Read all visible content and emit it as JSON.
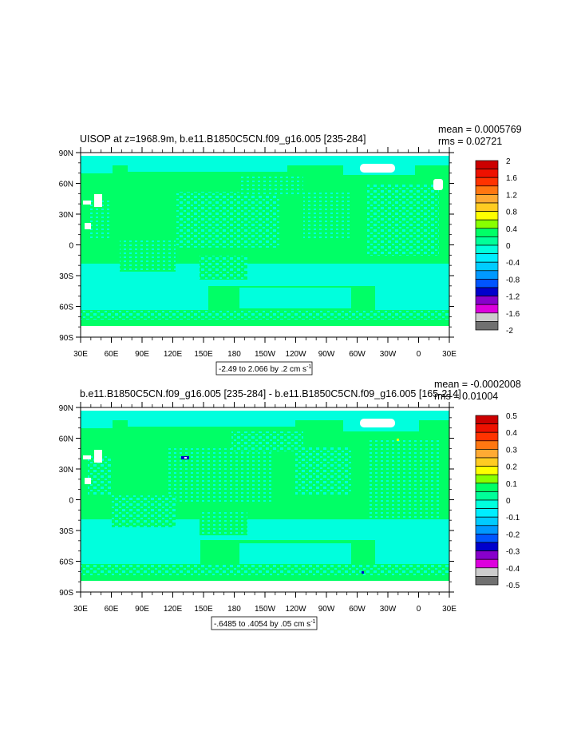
{
  "colors": {
    "ocean_zero": "#00ff66",
    "ocean_neg_small": "#00ffdd",
    "land_missing": "#ffffff"
  },
  "panels": [
    {
      "title_left": "UISOP at z=1968.9m, b.e11.B1850C5CN.f09_g16.005 [235-284]",
      "mean_label": "mean = 0.0005769",
      "rms_label": "rms = 0.02721",
      "range_main": "-2.49 to 2.066 by .2 cm s",
      "range_exp": "-1",
      "lat_labels": [
        "90N",
        "60N",
        "30N",
        "0",
        "30S",
        "60S",
        "90S"
      ],
      "lon_labels": [
        "30E",
        "60E",
        "90E",
        "120E",
        "150E",
        "180",
        "150W",
        "120W",
        "90W",
        "60W",
        "30W",
        "0",
        "30E"
      ],
      "colorbar": {
        "labels": [
          "2",
          "1.6",
          "1.2",
          "0.8",
          "0.4",
          "0",
          "-0.4",
          "-0.8",
          "-1.2",
          "-1.6",
          "-2"
        ],
        "colors": [
          "#cc0000",
          "#ee1100",
          "#ff3300",
          "#ff7711",
          "#ffaa33",
          "#ffcc22",
          "#ffff00",
          "#88ff00",
          "#00ff66",
          "#00ff99",
          "#00ffdd",
          "#00eeff",
          "#00ccff",
          "#0099ff",
          "#0055ff",
          "#0000cc",
          "#8800cc",
          "#dd00dd",
          "#cccccc",
          "#707070"
        ]
      }
    },
    {
      "title_left": "b.e11.B1850C5CN.f09_g16.005 [235-284] - b.e11.B1850C5CN.f09_g16.005 [165-214]",
      "mean_label": "mean = -0.0002008",
      "rms_label": "rms = 0.01004",
      "range_main": "-.6485 to .4054 by .05 cm s",
      "range_exp": "-1",
      "lat_labels": [
        "90N",
        "60N",
        "30N",
        "0",
        "30S",
        "60S",
        "90S"
      ],
      "lon_labels": [
        "30E",
        "60E",
        "90E",
        "120E",
        "150E",
        "180",
        "150W",
        "120W",
        "90W",
        "60W",
        "30W",
        "0",
        "30E"
      ],
      "colorbar": {
        "labels": [
          "0.5",
          "0.4",
          "0.3",
          "0.2",
          "0.1",
          "0",
          "-0.1",
          "-0.2",
          "-0.3",
          "-0.4",
          "-0.5"
        ],
        "colors": [
          "#cc0000",
          "#ee1100",
          "#ff3300",
          "#ff7711",
          "#ffaa33",
          "#ffcc22",
          "#ffff00",
          "#88ff00",
          "#00ff66",
          "#00ff99",
          "#00ffdd",
          "#00eeff",
          "#00ccff",
          "#0099ff",
          "#0055ff",
          "#0000cc",
          "#8800cc",
          "#dd00dd",
          "#cccccc",
          "#707070"
        ]
      }
    }
  ]
}
